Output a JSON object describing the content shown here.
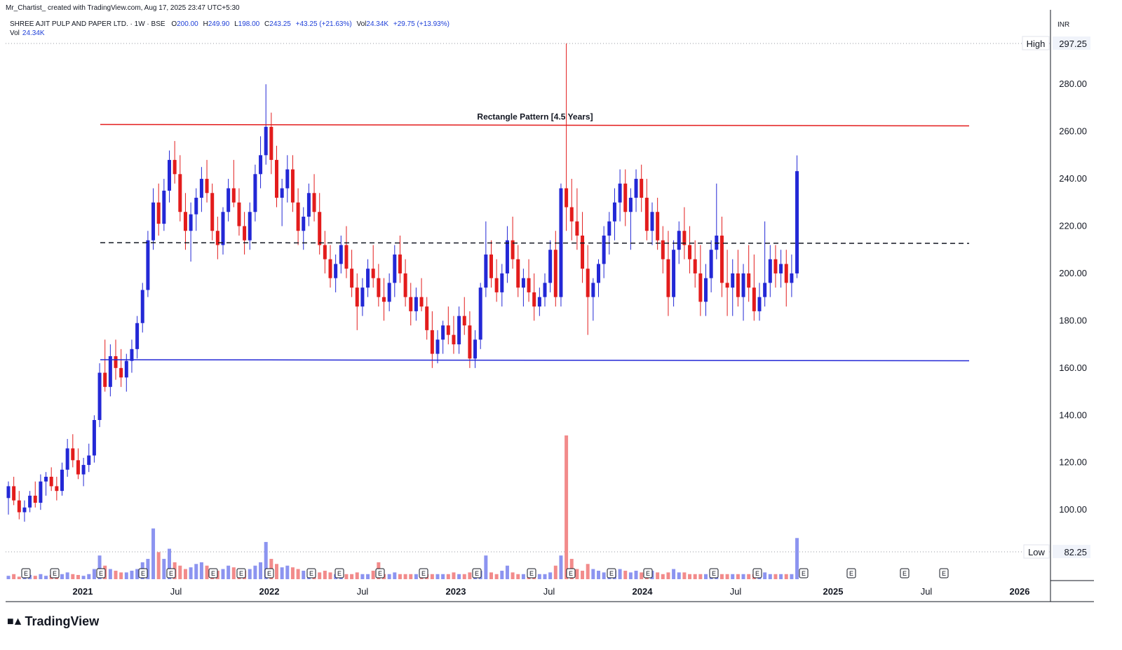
{
  "header": {
    "credit": "Mr_Chartist_ created with TradingView.com, Aug 17, 2025 23:47 UTC+5:30",
    "symbol_line": "SHREE AJIT PULP AND PAPER LTD. · 1W · BSE",
    "o_label": "O",
    "o_value": "200.00",
    "h_label": "H",
    "h_value": "249.90",
    "l_label": "L",
    "l_value": "198.00",
    "c_label": "C",
    "c_value": "243.25",
    "change": "+43.25 (+21.63%)",
    "vol_label": "Vol",
    "vol_value": "24.34K",
    "vol_change": "+29.75 (+13.93%)",
    "vol_row_label": "Vol",
    "vol_row_value": "24.34K"
  },
  "axis": {
    "currency": "INR",
    "high_label": "High",
    "high_value": "297.25",
    "low_label": "Low",
    "low_value": "82.25"
  },
  "logo": {
    "text": "TradingView"
  },
  "colors": {
    "up": "#2328d6",
    "down": "#e31c1c",
    "vol_up": "#8c94f0",
    "vol_down": "#f28b8b",
    "top_line": "#e31c1c",
    "bottom_line": "#2328d6"
  },
  "chart_data": {
    "type": "candlestick",
    "title": "",
    "annotation": "Rectangle Pattern [4.5 Years]",
    "x_tick_labels": [
      "2021",
      "Jul",
      "2022",
      "Jul",
      "2023",
      "Jul",
      "2024",
      "Jul",
      "2025",
      "Jul",
      "2026"
    ],
    "y_ticks": [
      100,
      120,
      140,
      160,
      180,
      200,
      220,
      240,
      260,
      280
    ],
    "y_tick_labels": [
      "100.00",
      "120.00",
      "140.00",
      "160.00",
      "180.00",
      "200.00",
      "220.00",
      "240.00",
      "260.00",
      "280.00"
    ],
    "ylim": [
      82.25,
      297.25
    ],
    "resistance": 263,
    "support": 163.5,
    "midline": 213,
    "earnings_marker": "E",
    "earnings_dates": [
      "2020-09-01",
      "2020-11-15",
      "2021-02-15",
      "2021-06-01",
      "2021-08-15",
      "2021-11-15",
      "2022-02-15",
      "2022-05-15",
      "2022-08-15",
      "2022-11-15",
      "2023-05-15",
      "2023-08-15",
      "2023-11-15",
      "2024-02-15",
      "2024-05-15",
      "2024-08-15",
      "2024-11-15",
      "2025-02-15",
      "2025-05-15",
      "2025-08-01"
    ],
    "weekly_ohlc": [
      [
        105,
        112,
        98,
        110
      ],
      [
        110,
        114,
        102,
        104
      ],
      [
        104,
        108,
        96,
        99
      ],
      [
        99,
        104,
        95,
        101
      ],
      [
        101,
        108,
        99,
        106
      ],
      [
        106,
        112,
        101,
        103
      ],
      [
        103,
        115,
        100,
        112
      ],
      [
        112,
        116,
        106,
        114
      ],
      [
        114,
        118,
        108,
        110
      ],
      [
        110,
        114,
        104,
        108
      ],
      [
        108,
        120,
        106,
        117
      ],
      [
        117,
        130,
        114,
        126
      ],
      [
        126,
        132,
        118,
        121
      ],
      [
        121,
        126,
        113,
        115
      ],
      [
        115,
        122,
        110,
        119
      ],
      [
        119,
        128,
        116,
        123
      ],
      [
        123,
        140,
        120,
        138
      ],
      [
        138,
        162,
        135,
        158
      ],
      [
        158,
        172,
        150,
        152
      ],
      [
        152,
        170,
        148,
        165
      ],
      [
        165,
        172,
        155,
        160
      ],
      [
        160,
        168,
        152,
        156
      ],
      [
        156,
        166,
        150,
        163
      ],
      [
        163,
        172,
        158,
        168
      ],
      [
        168,
        182,
        164,
        179
      ],
      [
        179,
        196,
        175,
        193
      ],
      [
        193,
        218,
        190,
        214
      ],
      [
        214,
        236,
        210,
        230
      ],
      [
        230,
        238,
        216,
        221
      ],
      [
        221,
        240,
        218,
        235
      ],
      [
        235,
        252,
        230,
        248
      ],
      [
        248,
        256,
        238,
        242
      ],
      [
        242,
        250,
        222,
        226
      ],
      [
        226,
        234,
        210,
        218
      ],
      [
        218,
        230,
        205,
        225
      ],
      [
        225,
        236,
        218,
        232
      ],
      [
        232,
        245,
        226,
        240
      ],
      [
        240,
        248,
        230,
        234
      ],
      [
        234,
        238,
        214,
        218
      ],
      [
        218,
        224,
        206,
        212
      ],
      [
        212,
        228,
        208,
        226
      ],
      [
        226,
        240,
        222,
        236
      ],
      [
        236,
        248,
        228,
        230
      ],
      [
        230,
        236,
        216,
        220
      ],
      [
        220,
        226,
        208,
        214
      ],
      [
        214,
        230,
        210,
        226
      ],
      [
        226,
        246,
        222,
        242
      ],
      [
        242,
        258,
        236,
        250
      ],
      [
        250,
        280,
        246,
        262
      ],
      [
        262,
        268,
        242,
        248
      ],
      [
        248,
        254,
        228,
        232
      ],
      [
        232,
        240,
        220,
        236
      ],
      [
        236,
        250,
        230,
        244
      ],
      [
        244,
        250,
        226,
        230
      ],
      [
        230,
        236,
        212,
        218
      ],
      [
        218,
        228,
        210,
        224
      ],
      [
        224,
        238,
        220,
        234
      ],
      [
        234,
        242,
        222,
        226
      ],
      [
        226,
        234,
        208,
        212
      ],
      [
        212,
        218,
        200,
        206
      ],
      [
        206,
        212,
        194,
        198
      ],
      [
        198,
        208,
        192,
        204
      ],
      [
        204,
        216,
        200,
        212
      ],
      [
        212,
        220,
        198,
        202
      ],
      [
        202,
        210,
        190,
        194
      ],
      [
        194,
        200,
        176,
        186
      ],
      [
        186,
        198,
        182,
        194
      ],
      [
        194,
        206,
        190,
        202
      ],
      [
        202,
        212,
        194,
        198
      ],
      [
        198,
        204,
        186,
        190
      ],
      [
        190,
        198,
        180,
        188
      ],
      [
        188,
        200,
        184,
        196
      ],
      [
        196,
        212,
        190,
        208
      ],
      [
        208,
        216,
        196,
        200
      ],
      [
        200,
        206,
        186,
        190
      ],
      [
        190,
        196,
        178,
        184
      ],
      [
        184,
        194,
        180,
        190
      ],
      [
        190,
        198,
        184,
        186
      ],
      [
        186,
        190,
        172,
        176
      ],
      [
        176,
        184,
        160,
        166
      ],
      [
        166,
        176,
        162,
        172
      ],
      [
        172,
        180,
        166,
        178
      ],
      [
        178,
        186,
        170,
        174
      ],
      [
        174,
        182,
        166,
        170
      ],
      [
        170,
        186,
        166,
        182
      ],
      [
        182,
        190,
        174,
        178
      ],
      [
        178,
        184,
        160,
        164
      ],
      [
        164,
        176,
        160,
        172
      ],
      [
        172,
        196,
        168,
        194
      ],
      [
        194,
        222,
        190,
        208
      ],
      [
        208,
        214,
        194,
        198
      ],
      [
        198,
        206,
        188,
        192
      ],
      [
        192,
        204,
        186,
        200
      ],
      [
        200,
        220,
        196,
        214
      ],
      [
        214,
        224,
        202,
        206
      ],
      [
        206,
        212,
        190,
        194
      ],
      [
        194,
        202,
        186,
        198
      ],
      [
        198,
        206,
        188,
        192
      ],
      [
        192,
        200,
        180,
        186
      ],
      [
        186,
        194,
        182,
        190
      ],
      [
        190,
        200,
        186,
        196
      ],
      [
        196,
        214,
        192,
        210
      ],
      [
        210,
        218,
        186,
        190
      ],
      [
        190,
        238,
        186,
        236
      ],
      [
        236,
        297.25,
        218,
        228
      ],
      [
        228,
        240,
        214,
        222
      ],
      [
        222,
        236,
        210,
        216
      ],
      [
        216,
        226,
        196,
        202
      ],
      [
        202,
        212,
        174,
        190
      ],
      [
        190,
        198,
        180,
        196
      ],
      [
        196,
        206,
        190,
        204
      ],
      [
        204,
        220,
        198,
        216
      ],
      [
        216,
        226,
        208,
        222
      ],
      [
        222,
        236,
        214,
        230
      ],
      [
        230,
        244,
        222,
        238
      ],
      [
        238,
        244,
        220,
        226
      ],
      [
        226,
        236,
        210,
        232
      ],
      [
        232,
        244,
        226,
        240
      ],
      [
        240,
        246,
        226,
        232
      ],
      [
        232,
        240,
        214,
        218
      ],
      [
        218,
        230,
        212,
        226
      ],
      [
        226,
        232,
        210,
        214
      ],
      [
        214,
        220,
        200,
        206
      ],
      [
        206,
        218,
        182,
        190
      ],
      [
        190,
        214,
        186,
        210
      ],
      [
        210,
        222,
        204,
        218
      ],
      [
        218,
        228,
        206,
        212
      ],
      [
        212,
        220,
        200,
        206
      ],
      [
        206,
        214,
        194,
        200
      ],
      [
        200,
        212,
        182,
        188
      ],
      [
        188,
        204,
        182,
        198
      ],
      [
        198,
        214,
        192,
        210
      ],
      [
        210,
        238,
        206,
        216
      ],
      [
        216,
        224,
        190,
        196
      ],
      [
        196,
        210,
        182,
        194
      ],
      [
        194,
        206,
        182,
        200
      ],
      [
        200,
        210,
        186,
        190
      ],
      [
        190,
        204,
        180,
        200
      ],
      [
        200,
        212,
        188,
        194
      ],
      [
        194,
        208,
        180,
        184
      ],
      [
        184,
        196,
        180,
        190
      ],
      [
        190,
        222,
        186,
        196
      ],
      [
        196,
        212,
        190,
        206
      ],
      [
        206,
        212,
        194,
        200
      ],
      [
        200,
        210,
        194,
        204
      ],
      [
        204,
        210,
        186,
        196
      ],
      [
        196,
        208,
        190,
        200
      ],
      [
        200,
        249.9,
        198,
        243.25
      ]
    ],
    "weekly_volume_k": [
      2,
      3,
      1.5,
      2,
      2.5,
      2,
      3,
      2,
      2.5,
      2,
      3,
      4,
      3,
      2.5,
      2,
      3,
      6,
      14,
      8,
      6,
      5,
      4,
      4,
      5,
      6,
      10,
      12,
      30,
      16,
      12,
      18,
      10,
      8,
      6,
      7,
      9,
      10,
      8,
      6,
      5,
      6,
      8,
      7,
      6,
      5,
      6,
      8,
      10,
      22,
      12,
      9,
      7,
      8,
      7,
      6,
      5,
      6,
      5,
      4,
      5,
      4,
      3,
      4,
      3,
      3,
      4,
      3,
      3,
      5,
      10,
      3,
      3,
      4,
      3,
      3,
      3,
      3,
      4,
      3,
      3,
      3,
      3,
      3,
      4,
      3,
      3,
      4,
      3,
      5,
      14,
      4,
      3,
      5,
      8,
      4,
      3,
      3,
      3,
      3,
      3,
      3,
      4,
      8,
      14,
      85,
      12,
      6,
      5,
      9,
      6,
      5,
      4,
      5,
      5,
      6,
      5,
      4,
      5,
      4,
      4,
      5,
      4,
      3,
      4,
      6,
      4,
      4,
      3,
      3,
      3,
      3,
      3,
      4,
      3,
      3,
      3,
      3,
      3,
      3,
      3,
      3,
      4,
      3,
      3,
      3,
      3,
      3,
      24.34
    ]
  }
}
